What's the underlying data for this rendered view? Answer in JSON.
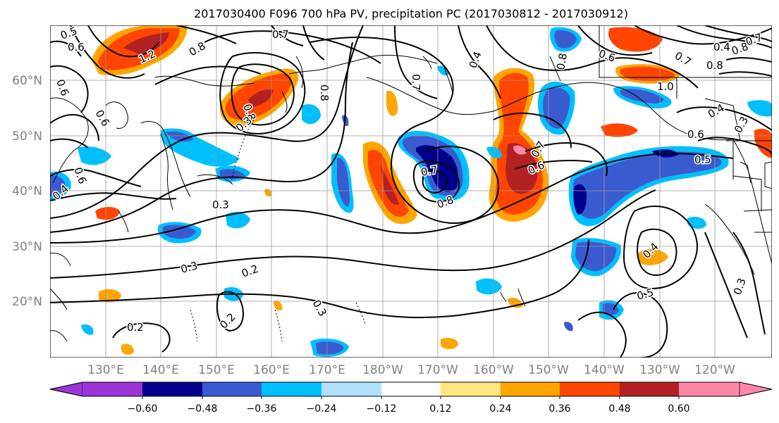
{
  "title": "2017030400 F096 700 hPa PV, precipitation PC (2017030812 - 2017030912)",
  "lat_labels": [
    "60°N",
    "50°N",
    "40°N",
    "30°N",
    "20°N"
  ],
  "lon_labels": [
    "130°E",
    "140°E",
    "150°E",
    "160°E",
    "170°E",
    "180°W",
    "170°W",
    "160°W",
    "150°W",
    "140°W",
    "130°W",
    "120°W"
  ],
  "colorbar": {
    "tick_labels": [
      "−0.60",
      "−0.48",
      "−0.36",
      "−0.24",
      "−0.12",
      "0.12",
      "0.24",
      "0.36",
      "0.48",
      "0.60"
    ],
    "colors": [
      "#9b35d6",
      "#00008b",
      "#3a5bd0",
      "#00bfff",
      "#b0e2ff",
      "#ffffff",
      "#ffe680",
      "#ffa500",
      "#ff4500",
      "#b22222",
      "#ff88aa"
    ]
  },
  "contour_labels": [
    "0.5",
    "0.6",
    "0.7",
    "0.8",
    "0.4",
    "0.3",
    "0.2",
    "1.0",
    "1.2"
  ],
  "colors": {
    "contour": "#000000",
    "grid": "#999999",
    "tick_label": "#808080"
  }
}
